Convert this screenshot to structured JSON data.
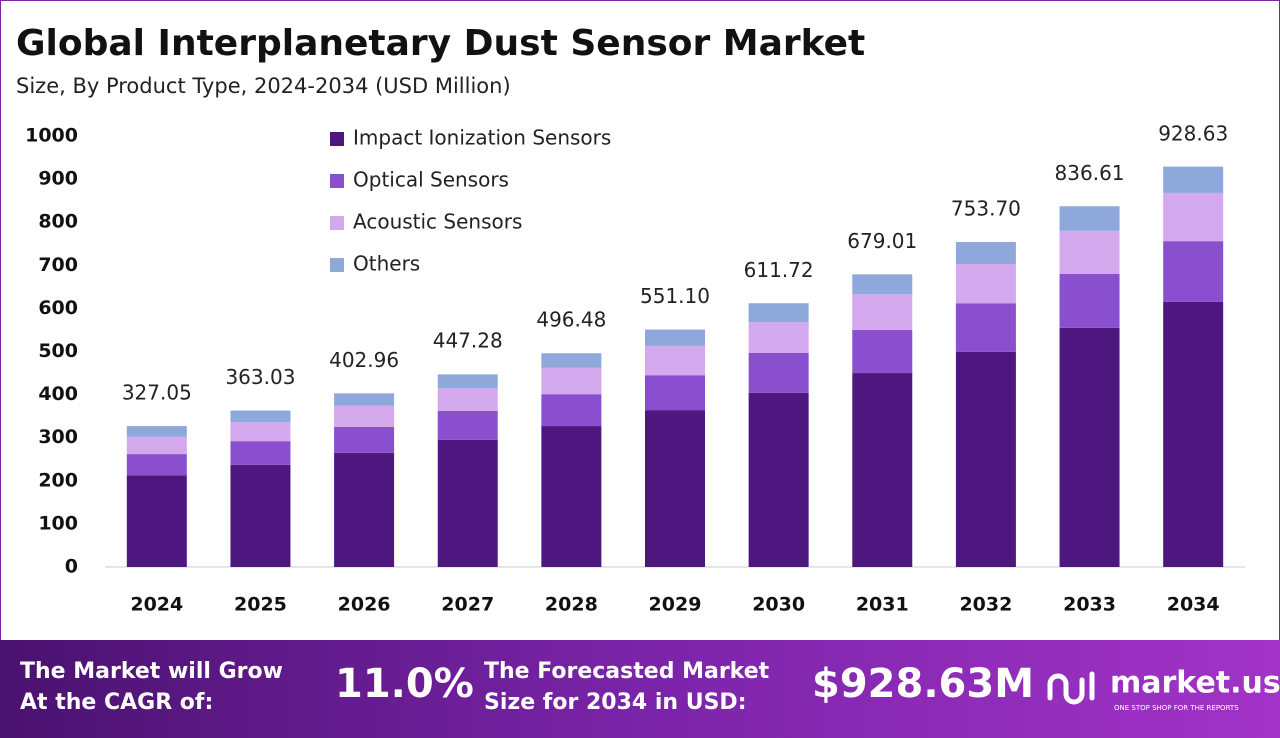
{
  "chart_data": {
    "type": "stacked_bar",
    "title": "Global Interplanetary Dust Sensor Market",
    "subtitle": "Size, By Product Type, 2024-2034 (USD Million)",
    "categories": [
      "2024",
      "2025",
      "2026",
      "2027",
      "2028",
      "2029",
      "2030",
      "2031",
      "2032",
      "2033",
      "2034"
    ],
    "series": [
      {
        "name": "Impact Ionization Sensors",
        "color": "#4e1780",
        "values": [
          213,
          237,
          265,
          295,
          327,
          364,
          404,
          450,
          499,
          555,
          615
        ]
      },
      {
        "name": "Optical Sensors",
        "color": "#8a4fcf",
        "values": [
          49,
          55,
          60,
          67,
          74,
          81,
          93,
          100,
          113,
          125,
          141
        ]
      },
      {
        "name": "Acoustic Sensors",
        "color": "#d4a8ec",
        "values": [
          40,
          44,
          49,
          53,
          61,
          68,
          71,
          83,
          91,
          100,
          112
        ]
      },
      {
        "name": "Others",
        "color": "#8fa8dc",
        "values": [
          25,
          27,
          29,
          32,
          34,
          38,
          44,
          46,
          51,
          57,
          61
        ]
      }
    ],
    "totals": {
      "values": [
        327.05,
        363.03,
        402.96,
        447.28,
        496.48,
        551.1,
        611.72,
        679.01,
        753.7,
        836.61,
        928.63
      ],
      "value_labels": [
        "327.05",
        "363.03",
        "402.96",
        "447.28",
        "496.48",
        "551.10",
        "611.72",
        "679.01",
        "753.70",
        "836.61",
        "928.63"
      ]
    },
    "ylim": [
      0,
      1000
    ],
    "yticks": [
      0,
      100,
      200,
      300,
      400,
      500,
      600,
      700,
      800,
      900,
      1000
    ],
    "grid": false,
    "legend": "top"
  },
  "footer": {
    "cagr_label": [
      "The Market will Grow",
      "At the CAGR of:"
    ],
    "cagr": "11.0%",
    "forecast_label": [
      "The Forecasted Market",
      "Size for 2034 in USD:"
    ],
    "forecast": "$928.63M",
    "brand": "market.us",
    "tagline": "ONE STOP SHOP FOR THE REPORTS"
  }
}
